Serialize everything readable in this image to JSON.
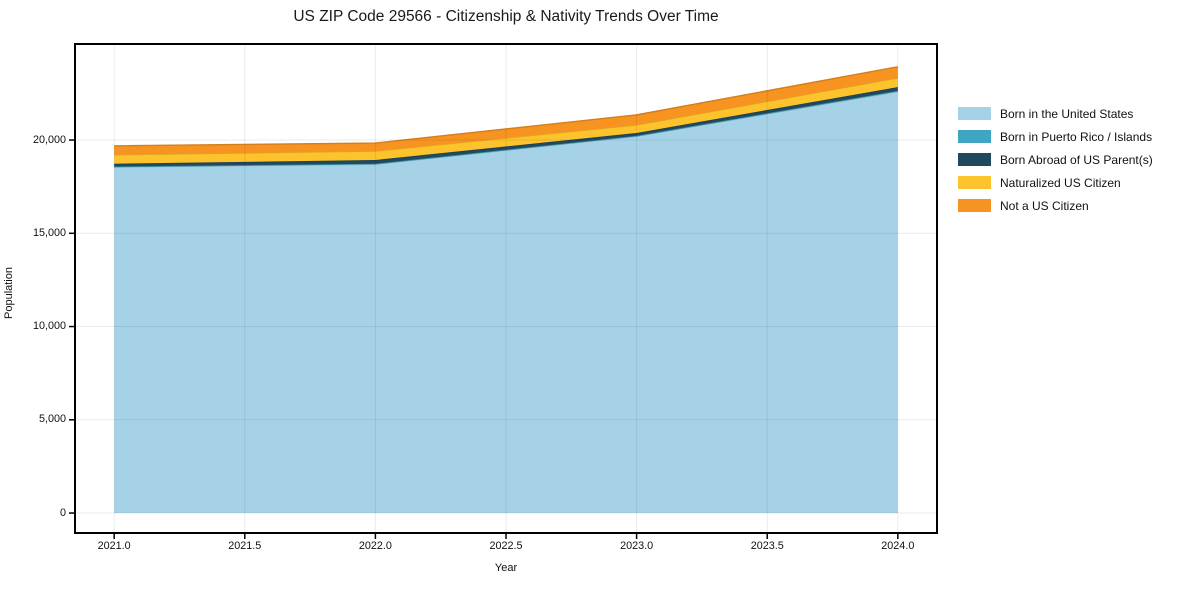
{
  "figure_background": "#ffffff",
  "chart_data": {
    "type": "area",
    "stacked": true,
    "title": "US ZIP Code 29566 - Citizenship & Nativity Trends Over Time",
    "xlabel": "Year",
    "ylabel": "Population",
    "x": [
      2021,
      2022,
      2023,
      2024
    ],
    "series": [
      {
        "name": "Born in the United States",
        "color": "#a6d2e8",
        "values": [
          18550,
          18700,
          20200,
          22600
        ]
      },
      {
        "name": "Born in Puerto Rico / Islands",
        "color": "#3ea6c3",
        "values": [
          30,
          30,
          30,
          40
        ]
      },
      {
        "name": "Born Abroad of US Parent(s)",
        "color": "#20495f",
        "values": [
          150,
          200,
          150,
          200
        ]
      },
      {
        "name": "Naturalized US Citizen",
        "color": "#fcc32d",
        "values": [
          480,
          480,
          430,
          490
        ]
      },
      {
        "name": "Not a US Citizen",
        "color": "#f79320",
        "values": [
          480,
          430,
          540,
          600
        ]
      }
    ],
    "totals": [
      19690,
      19840,
      21350,
      23930
    ],
    "xlim": [
      2020.85,
      2024.15
    ],
    "ylim": [
      -1070,
      25150
    ],
    "x_ticks": {
      "values": [
        2021.0,
        2021.5,
        2022.0,
        2022.5,
        2023.0,
        2023.5,
        2024.0
      ],
      "labels": [
        "2021.0",
        "2021.5",
        "2022.0",
        "2022.5",
        "2023.0",
        "2023.5",
        "2024.0"
      ]
    },
    "y_ticks": {
      "values": [
        0,
        5000,
        10000,
        15000,
        20000
      ],
      "labels": [
        "0",
        "5,000",
        "10,000",
        "15,000",
        "20,000"
      ]
    },
    "grid": true,
    "grid_color": "rgba(0,0,0,0.08)",
    "frame_color": "#000000",
    "legend_position": "right-outside"
  }
}
